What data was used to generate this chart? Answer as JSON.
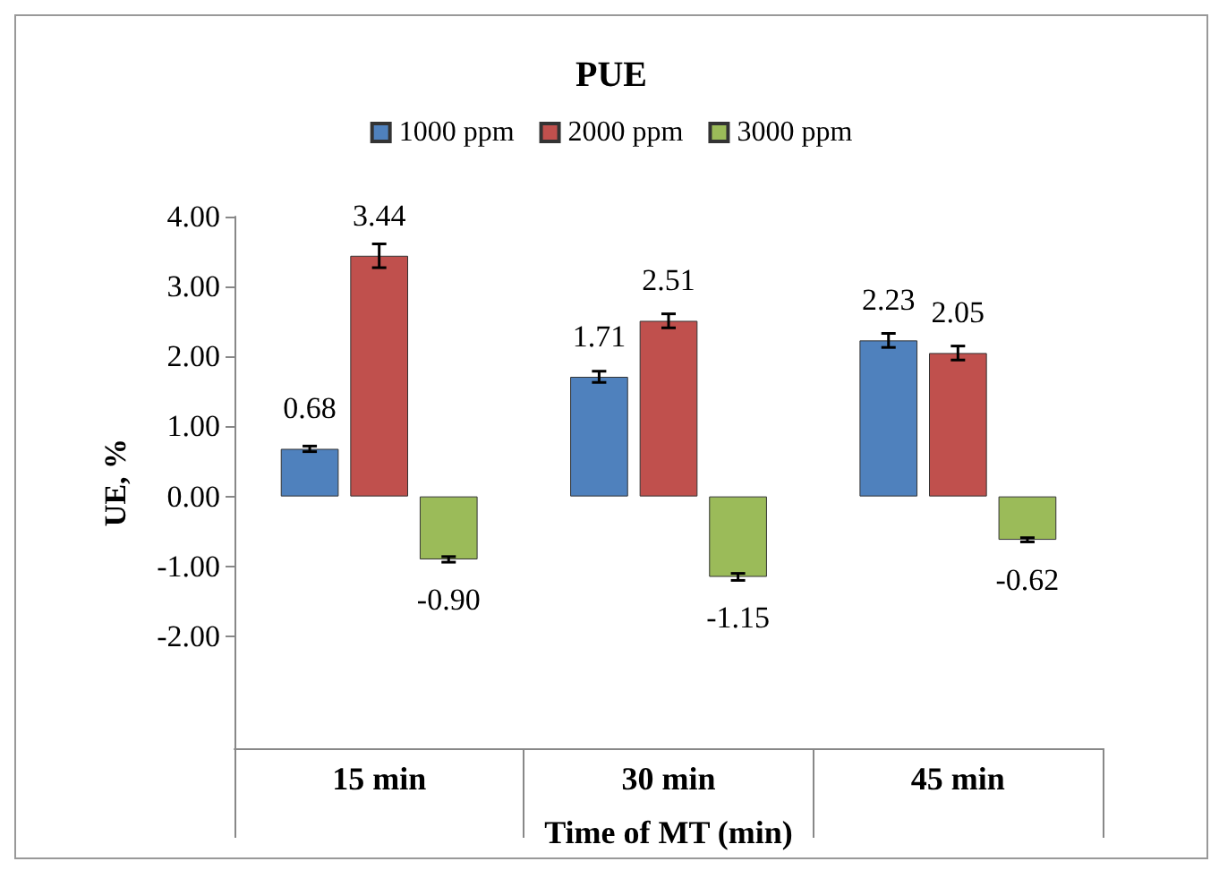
{
  "chart_data": {
    "type": "bar",
    "title": "PUE",
    "xlabel": "Time of MT (min)",
    "ylabel": "UE, %",
    "categories": [
      "15 min",
      "30 min",
      "45 min"
    ],
    "series": [
      {
        "name": "1000 ppm",
        "color": "#4f81bd",
        "values": [
          0.68,
          1.71,
          2.23
        ],
        "errors": [
          0.04,
          0.08,
          0.1
        ],
        "value_labels": [
          "0.68",
          "1.71",
          "2.23"
        ]
      },
      {
        "name": "2000 ppm",
        "color": "#c0504d",
        "values": [
          3.44,
          2.51,
          2.05
        ],
        "errors": [
          0.17,
          0.1,
          0.1
        ],
        "value_labels": [
          "3.44",
          "2.51",
          "2.05"
        ]
      },
      {
        "name": "3000 ppm",
        "color": "#9bbb59",
        "values": [
          -0.9,
          -1.15,
          -0.62
        ],
        "errors": [
          0.04,
          0.05,
          0.03
        ],
        "value_labels": [
          "-0.90",
          "-1.15",
          "-0.62"
        ]
      }
    ],
    "ylim": [
      -3.6,
      4
    ],
    "yticks": [
      {
        "value": -2,
        "label": "-2.00"
      },
      {
        "value": -1,
        "label": "-1.00"
      },
      {
        "value": 0,
        "label": "0.00"
      },
      {
        "value": 1,
        "label": "1.00"
      },
      {
        "value": 2,
        "label": "2.00"
      },
      {
        "value": 3,
        "label": "3.00"
      },
      {
        "value": 4,
        "label": "4.00"
      }
    ],
    "legend": "top",
    "grid": false
  }
}
